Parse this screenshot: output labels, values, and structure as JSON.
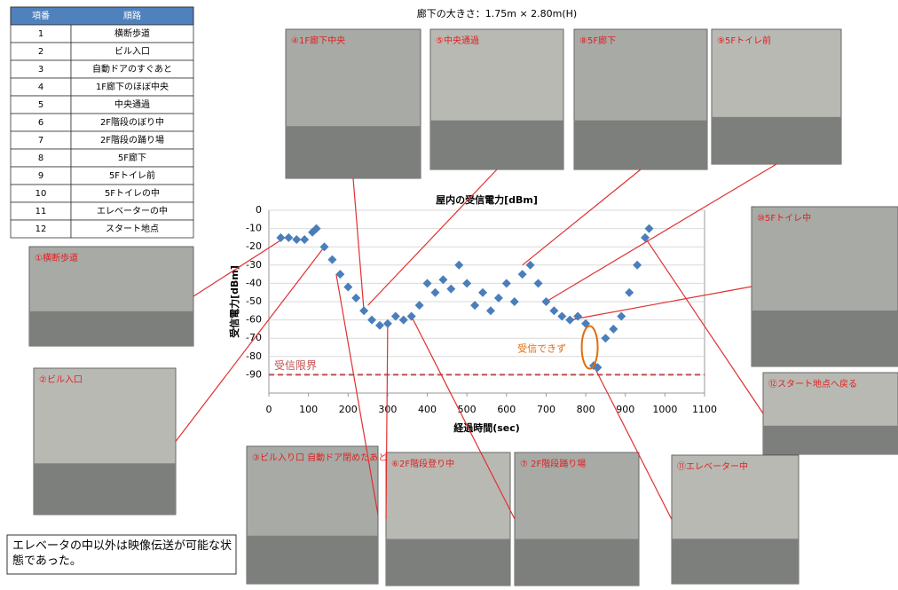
{
  "header": "廊下の大きさ：1.75m × 2.80m(H)",
  "table": {
    "columns": [
      "項番",
      "順路"
    ],
    "rows": [
      [
        "1",
        "横断歩道"
      ],
      [
        "2",
        "ビル入口"
      ],
      [
        "3",
        "自動ドアのすぐあと"
      ],
      [
        "4",
        "1F廊下のほぼ中央"
      ],
      [
        "5",
        "中央通過"
      ],
      [
        "6",
        "2F階段のぼり中"
      ],
      [
        "7",
        "2F階段の踊り場"
      ],
      [
        "8",
        "5F廊下"
      ],
      [
        "9",
        "5Fトイレ前"
      ],
      [
        "10",
        "5Fトイレの中"
      ],
      [
        "11",
        "エレベーターの中"
      ],
      [
        "12",
        "スタート地点"
      ]
    ]
  },
  "photos": [
    "④1F廊下中央",
    "⑤中央通過",
    "⑧5F廊下",
    "⑨5Fトイレ前",
    "⑩5Fトイレ中",
    "⑫スタート地点へ戻る",
    "①横断歩道",
    "②ビル入口",
    "③ビル入り口 自動ドア閉めたあと",
    "⑥2F階段登り中",
    "⑦ 2F階段踊り場",
    "⑪エレベーター中"
  ],
  "note": "エレベータの中以外は映像伝送が可能な状態であった。",
  "chart_data": {
    "type": "scatter",
    "title": "屋内の受信電力[dBm]",
    "x_label": "経過時間(sec)",
    "y_label": "受信電力[dBm]",
    "x": [
      30,
      50,
      70,
      90,
      110,
      120,
      140,
      160,
      180,
      200,
      220,
      240,
      260,
      280,
      300,
      320,
      340,
      360,
      380,
      400,
      420,
      440,
      460,
      480,
      500,
      520,
      540,
      560,
      580,
      600,
      620,
      640,
      660,
      680,
      700,
      720,
      740,
      760,
      780,
      800,
      820,
      830,
      850,
      870,
      890,
      910,
      930,
      950,
      960
    ],
    "values": [
      -15,
      -15,
      -16,
      -16,
      -12,
      -10,
      -20,
      -27,
      -35,
      -42,
      -48,
      -55,
      -60,
      -63,
      -62,
      -58,
      -60,
      -58,
      -52,
      -40,
      -45,
      -38,
      -43,
      -30,
      -40,
      -52,
      -45,
      -55,
      -48,
      -40,
      -50,
      -35,
      -30,
      -40,
      -50,
      -55,
      -58,
      -60,
      -58,
      -62,
      -85,
      -86,
      -70,
      -65,
      -58,
      -45,
      -30,
      -15,
      -10
    ],
    "color": "#4a7ebb",
    "xlim": [
      0,
      1100
    ],
    "xticks": [
      0,
      100,
      200,
      300,
      400,
      500,
      600,
      700,
      800,
      900,
      1000,
      1100
    ],
    "ylim": [
      -100,
      0
    ],
    "yticks": [
      0,
      -10,
      -20,
      -30,
      -40,
      -50,
      -60,
      -70,
      -80,
      -90
    ],
    "grid": true,
    "threshold": {
      "value": -90,
      "label": "受信限界",
      "color": "#c0504d"
    },
    "annotation": {
      "label": "受信できず",
      "color": "#e46c0a"
    }
  }
}
